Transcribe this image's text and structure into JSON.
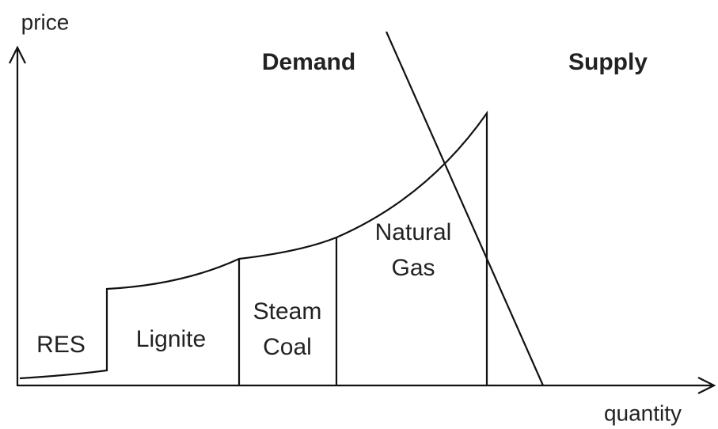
{
  "axes": {
    "y_label": "price",
    "x_label": "quantity"
  },
  "curves": {
    "demand": "Demand",
    "supply": "Supply"
  },
  "segments": [
    {
      "lines": [
        "RES"
      ]
    },
    {
      "lines": [
        "Lignite"
      ]
    },
    {
      "lines": [
        "Steam",
        "Coal"
      ]
    },
    {
      "lines": [
        "Natural",
        "Gas"
      ]
    }
  ]
}
